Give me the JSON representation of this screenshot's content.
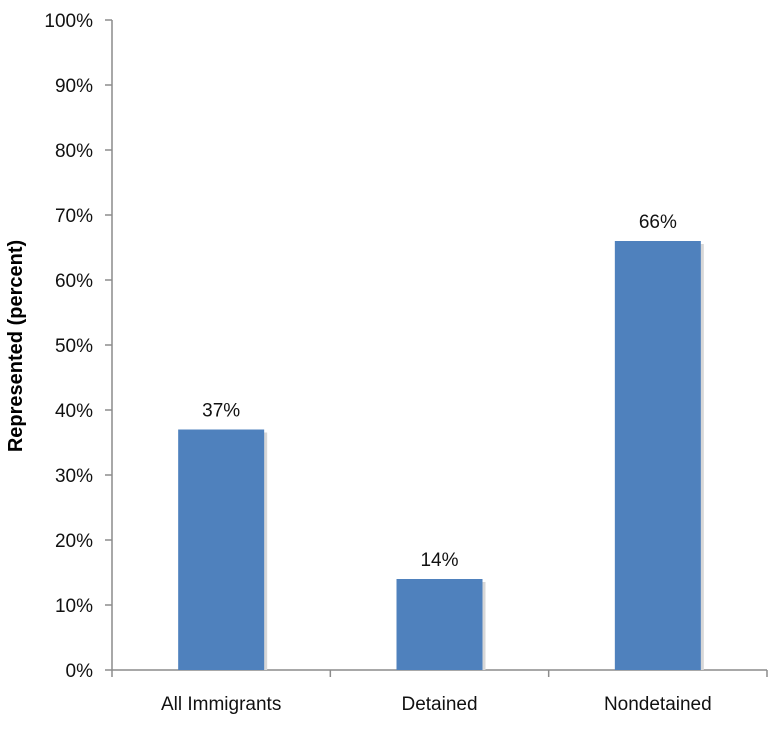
{
  "chart_data": {
    "type": "bar",
    "categories": [
      "All Immigrants",
      "Detained",
      "Nondetained"
    ],
    "values": [
      37,
      14,
      66
    ],
    "data_labels": [
      "37%",
      "14%",
      "66%"
    ],
    "ylabel": "Represented (percent)",
    "ylim": [
      0,
      100
    ],
    "y_ticks": [
      0,
      10,
      20,
      30,
      40,
      50,
      60,
      70,
      80,
      90,
      100
    ],
    "y_tick_labels": [
      "0%",
      "10%",
      "20%",
      "30%",
      "40%",
      "50%",
      "60%",
      "70%",
      "80%",
      "90%",
      "100%"
    ],
    "grid": false,
    "legend": "none",
    "bar_color": "#4f81bd",
    "shadow_color": "#d7d7d7",
    "axis_color": "#8c8c8c"
  }
}
